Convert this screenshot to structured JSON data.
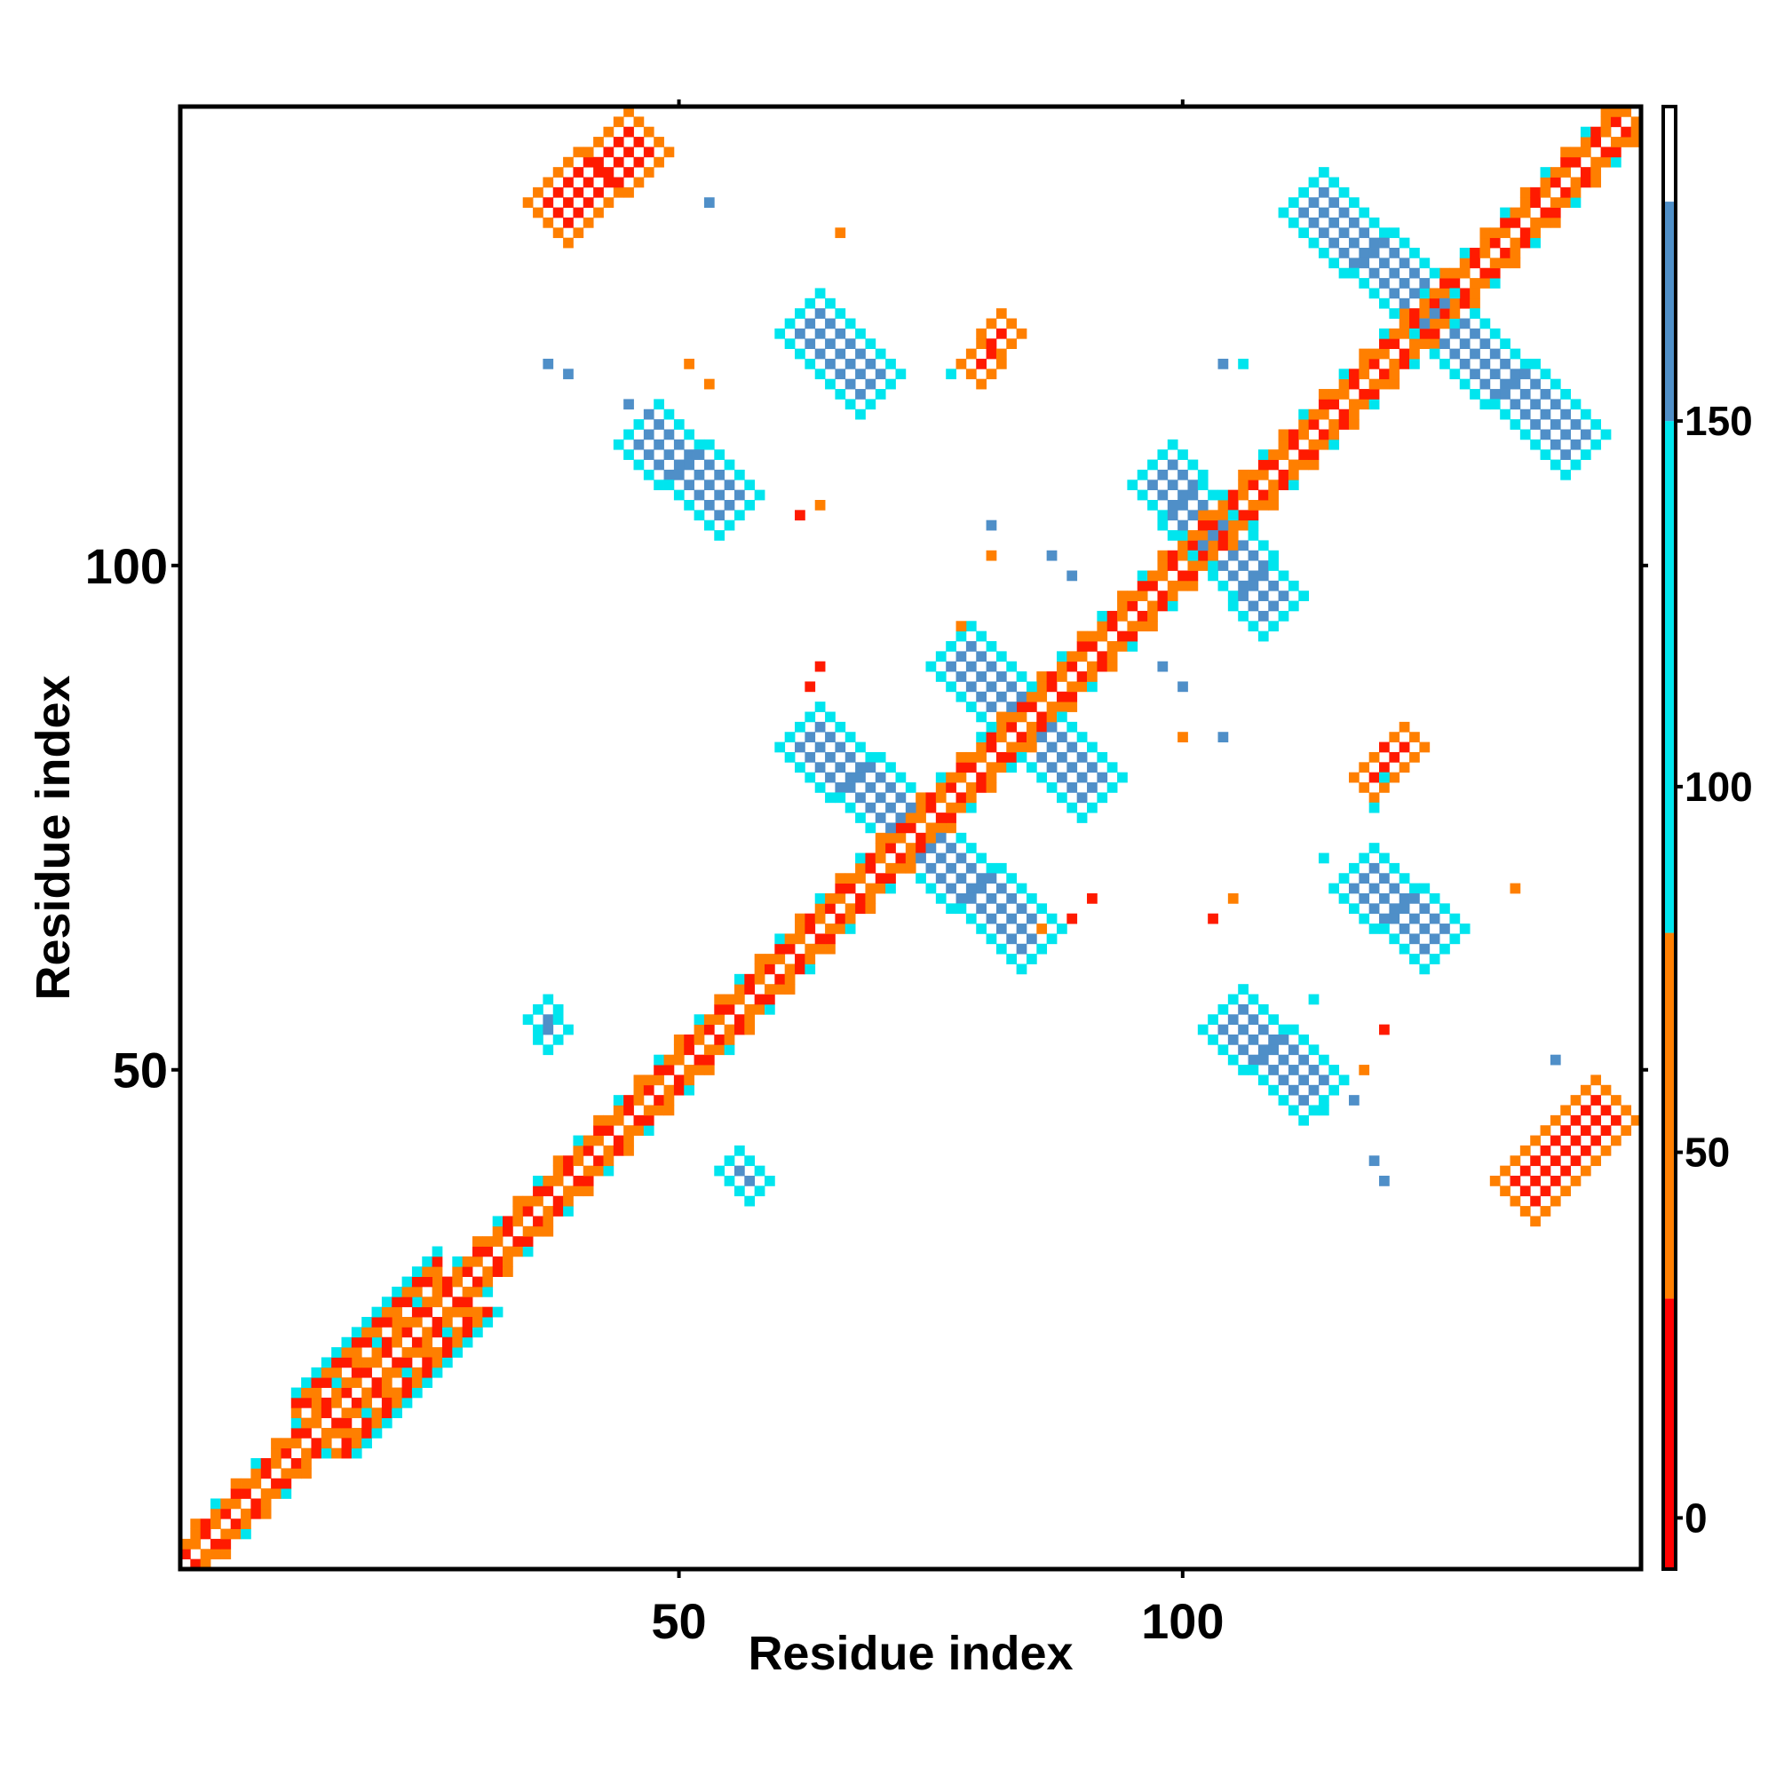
{
  "chart_data": {
    "type": "heatmap",
    "title": "",
    "xlabel": "Residue index",
    "ylabel": "Residue index",
    "xlim": [
      1,
      145
    ],
    "ylim": [
      1,
      145
    ],
    "x_ticks": [
      50,
      100
    ],
    "y_ticks": [
      50,
      100
    ],
    "colorbar": {
      "ticks": [
        0,
        50,
        100,
        150
      ],
      "range": [
        -7,
        193
      ],
      "bands": [
        {
          "from": -7,
          "to": 30,
          "color": "#ff0000"
        },
        {
          "from": 30,
          "to": 80,
          "color": "#ff7f00"
        },
        {
          "from": 80,
          "to": 150,
          "color": "#00e5ee"
        },
        {
          "from": 150,
          "to": 180,
          "color": "#4f8fc8"
        },
        {
          "from": 180,
          "to": 193,
          "color": "#ffffff"
        }
      ]
    },
    "palette": {
      "red": "#ff1a00",
      "orange": "#ff7f00",
      "cyan": "#00e5ee",
      "blue": "#4f8fc8"
    },
    "diagonal_band": {
      "from": 1,
      "to": 145,
      "half_width_inner": 2,
      "half_width_outer": 3
    },
    "segments": [
      {
        "from": [
          62,
          125
        ],
        "to": [
          70,
          117
        ],
        "width": 2,
        "color": "cyan",
        "core": "blue"
      },
      {
        "from": [
          46,
          114
        ],
        "to": [
          56,
          105
        ],
        "width": 2,
        "color": "cyan",
        "core": "blue"
      },
      {
        "from": [
          112,
          137
        ],
        "to": [
          140,
          111
        ],
        "width": 2,
        "color": "cyan",
        "core": "blue"
      },
      {
        "from": [
          97,
          110
        ],
        "to": [
          110,
          95
        ],
        "width": 2,
        "color": "cyan",
        "core": "blue"
      },
      {
        "from": [
          77,
          92
        ],
        "to": [
          92,
          77
        ],
        "width": 2,
        "color": "cyan",
        "core": "blue"
      },
      {
        "from": [
          62,
          84
        ],
        "to": [
          86,
          62
        ],
        "width": 2,
        "color": "cyan",
        "core": "blue"
      },
      {
        "from": [
          117,
          70
        ],
        "to": [
          126,
          62
        ],
        "width": 2,
        "color": "cyan",
        "core": "blue"
      },
      {
        "from": [
          104,
          56
        ],
        "to": [
          114,
          47
        ],
        "width": 2,
        "color": "cyan",
        "core": "blue"
      },
      {
        "from": [
          36,
          56
        ],
        "to": [
          38,
          53
        ],
        "width": 1,
        "color": "cyan",
        "core": "blue"
      },
      {
        "from": [
          55,
          41
        ],
        "to": [
          58,
          38
        ],
        "width": 1,
        "color": "cyan",
        "core": "blue"
      },
      {
        "from": [
          37,
          134
        ],
        "to": [
          47,
          143
        ],
        "width": 2,
        "color": "orange",
        "core": "red"
      },
      {
        "from": [
          133,
          37
        ],
        "to": [
          143,
          47
        ],
        "width": 2,
        "color": "orange",
        "core": "red"
      },
      {
        "from": [
          79,
          119
        ],
        "to": [
          83,
          124
        ],
        "width": 1,
        "color": "orange",
        "core": "red"
      },
      {
        "from": [
          118,
          78
        ],
        "to": [
          123,
          83
        ],
        "width": 1,
        "color": "orange",
        "core": "red"
      }
    ],
    "isolated_cells": [
      {
        "x": 53,
        "y": 136,
        "color": "blue"
      },
      {
        "x": 66,
        "y": 133,
        "color": "orange"
      },
      {
        "x": 37,
        "y": 120,
        "color": "blue"
      },
      {
        "x": 39,
        "y": 119,
        "color": "blue"
      },
      {
        "x": 51,
        "y": 120,
        "color": "orange"
      },
      {
        "x": 53,
        "y": 118,
        "color": "orange"
      },
      {
        "x": 77,
        "y": 119,
        "color": "cyan"
      },
      {
        "x": 104,
        "y": 120,
        "color": "blue"
      },
      {
        "x": 106,
        "y": 120,
        "color": "cyan"
      },
      {
        "x": 67,
        "y": 116,
        "color": "cyan"
      },
      {
        "x": 45,
        "y": 116,
        "color": "blue"
      },
      {
        "x": 47,
        "y": 115,
        "color": "blue"
      },
      {
        "x": 64,
        "y": 106,
        "color": "orange"
      },
      {
        "x": 62,
        "y": 105,
        "color": "red"
      },
      {
        "x": 81,
        "y": 104,
        "color": "blue"
      },
      {
        "x": 81,
        "y": 101,
        "color": "orange"
      },
      {
        "x": 87,
        "y": 101,
        "color": "blue"
      },
      {
        "x": 89,
        "y": 99,
        "color": "blue"
      },
      {
        "x": 78,
        "y": 94,
        "color": "orange"
      },
      {
        "x": 64,
        "y": 90,
        "color": "red"
      },
      {
        "x": 63,
        "y": 88,
        "color": "red"
      },
      {
        "x": 98,
        "y": 90,
        "color": "blue"
      },
      {
        "x": 100,
        "y": 88,
        "color": "blue"
      },
      {
        "x": 100,
        "y": 83,
        "color": "orange"
      },
      {
        "x": 104,
        "y": 83,
        "color": "blue"
      },
      {
        "x": 120,
        "y": 82,
        "color": "red"
      },
      {
        "x": 118,
        "y": 80,
        "color": "orange"
      },
      {
        "x": 120,
        "y": 79,
        "color": "cyan"
      },
      {
        "x": 119,
        "y": 76,
        "color": "cyan"
      },
      {
        "x": 91,
        "y": 67,
        "color": "red"
      },
      {
        "x": 89,
        "y": 65,
        "color": "red"
      },
      {
        "x": 86,
        "y": 64,
        "color": "orange"
      },
      {
        "x": 105,
        "y": 67,
        "color": "orange"
      },
      {
        "x": 103,
        "y": 65,
        "color": "red"
      },
      {
        "x": 114,
        "y": 71,
        "color": "cyan"
      },
      {
        "x": 133,
        "y": 68,
        "color": "orange"
      },
      {
        "x": 118,
        "y": 50,
        "color": "orange"
      },
      {
        "x": 120,
        "y": 54,
        "color": "red"
      },
      {
        "x": 137,
        "y": 51,
        "color": "blue"
      },
      {
        "x": 117,
        "y": 47,
        "color": "blue"
      },
      {
        "x": 114,
        "y": 46,
        "color": "cyan"
      },
      {
        "x": 119,
        "y": 41,
        "color": "blue"
      },
      {
        "x": 120,
        "y": 39,
        "color": "blue"
      },
      {
        "x": 113,
        "y": 57,
        "color": "cyan"
      }
    ]
  }
}
